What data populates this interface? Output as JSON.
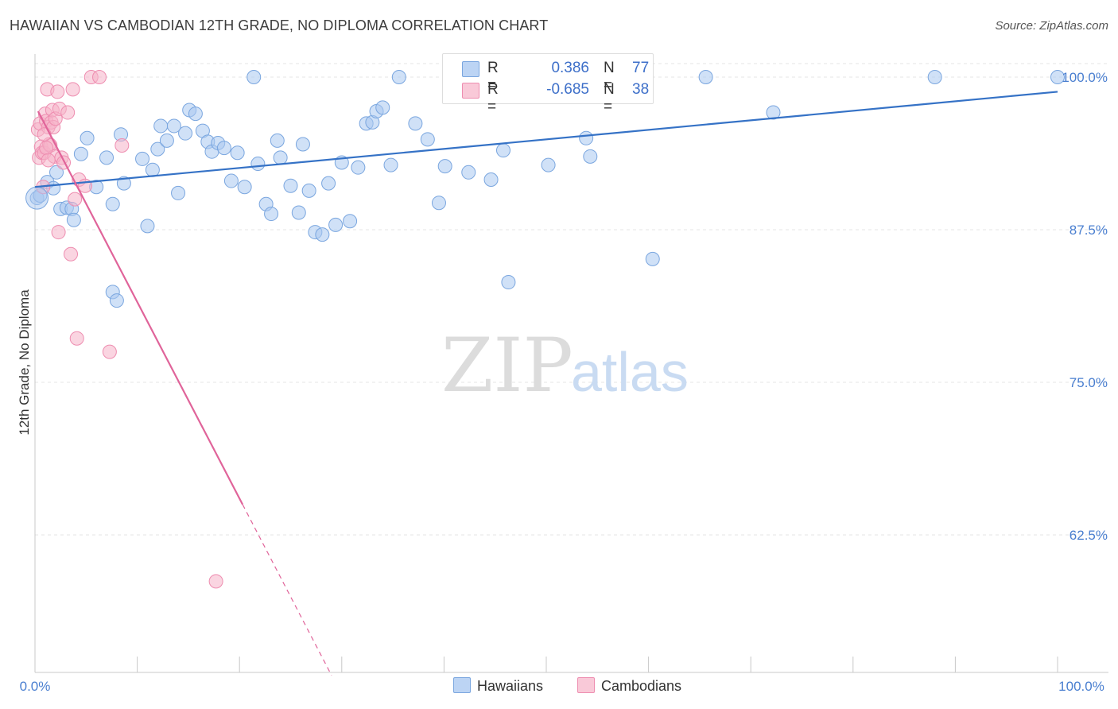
{
  "header": {
    "title": "HAWAIIAN VS CAMBODIAN 12TH GRADE, NO DIPLOMA CORRELATION CHART",
    "source": "Source: ZipAtlas.com"
  },
  "watermark": {
    "zip": "ZIP",
    "atlas": "atlas"
  },
  "legend": {
    "rows": [
      {
        "r_label": "R =",
        "r_value": "0.386",
        "n_label": "N =",
        "n_value": "77",
        "color": "#a9c8f0"
      },
      {
        "r_label": "R =",
        "r_value": "-0.685",
        "n_label": "N =",
        "n_value": "38",
        "color": "#f6b3c8"
      }
    ],
    "bottom": [
      {
        "label": "Hawaiians",
        "color": "#a9c8f0"
      },
      {
        "label": "Cambodians",
        "color": "#f6b3c8"
      }
    ]
  },
  "colors": {
    "blue_fill": "#a9c8f0",
    "blue_stroke": "#7aa6df",
    "blue_line": "#3572c6",
    "pink_fill": "#f6b3c8",
    "pink_stroke": "#ee8db0",
    "pink_line": "#e0649a",
    "axis_text": "#4a7fd0",
    "grid": "#e6e6e6"
  },
  "chart_data": {
    "type": "scatter",
    "title": "HAWAIIAN VS CAMBODIAN 12TH GRADE, NO DIPLOMA CORRELATION CHART",
    "xlabel": "",
    "ylabel": "12th Grade, No Diploma",
    "xlim": [
      0,
      100
    ],
    "ylim": [
      50,
      101.5
    ],
    "x_tick_labels": [
      "0.0%",
      "100.0%"
    ],
    "y_ticks": [
      62.5,
      75.0,
      87.5,
      100.0
    ],
    "y_tick_labels": [
      "62.5%",
      "75.0%",
      "87.5%",
      "100.0%"
    ],
    "grid": true,
    "legend_position": "top-center",
    "series": [
      {
        "name": "Hawaiians",
        "r": 0.386,
        "n": 77,
        "trend": {
          "x": [
            0,
            100
          ],
          "y": [
            91.0,
            98.8
          ]
        },
        "points": [
          [
            0.2,
            90.1
          ],
          [
            0.5,
            90.3
          ],
          [
            1.2,
            91.4
          ],
          [
            1.8,
            90.9
          ],
          [
            2.1,
            92.2
          ],
          [
            2.5,
            89.2
          ],
          [
            3.1,
            89.3
          ],
          [
            3.6,
            89.2
          ],
          [
            3.8,
            88.3
          ],
          [
            4.5,
            93.7
          ],
          [
            5.1,
            95.0
          ],
          [
            6.0,
            91.0
          ],
          [
            7.0,
            93.4
          ],
          [
            7.6,
            89.6
          ],
          [
            8.4,
            95.3
          ],
          [
            8.7,
            91.3
          ],
          [
            10.5,
            93.3
          ],
          [
            11.0,
            87.8
          ],
          [
            11.5,
            92.4
          ],
          [
            12.0,
            94.1
          ],
          [
            12.3,
            96.0
          ],
          [
            12.9,
            94.8
          ],
          [
            13.6,
            96.0
          ],
          [
            14.0,
            90.5
          ],
          [
            14.7,
            95.4
          ],
          [
            15.1,
            97.3
          ],
          [
            15.7,
            97.0
          ],
          [
            16.4,
            95.6
          ],
          [
            16.9,
            94.7
          ],
          [
            17.3,
            93.9
          ],
          [
            17.9,
            94.6
          ],
          [
            18.5,
            94.2
          ],
          [
            19.2,
            91.5
          ],
          [
            19.8,
            93.8
          ],
          [
            20.5,
            91.0
          ],
          [
            21.4,
            100.0
          ],
          [
            21.8,
            92.9
          ],
          [
            22.6,
            89.6
          ],
          [
            23.1,
            88.8
          ],
          [
            23.7,
            94.8
          ],
          [
            24.0,
            93.4
          ],
          [
            25.0,
            91.1
          ],
          [
            25.8,
            88.9
          ],
          [
            26.2,
            94.5
          ],
          [
            26.8,
            90.7
          ],
          [
            27.4,
            87.3
          ],
          [
            28.1,
            87.1
          ],
          [
            28.7,
            91.3
          ],
          [
            29.4,
            87.9
          ],
          [
            30.0,
            93.0
          ],
          [
            30.8,
            88.2
          ],
          [
            31.6,
            92.6
          ],
          [
            32.4,
            96.2
          ],
          [
            33.0,
            96.3
          ],
          [
            33.4,
            97.2
          ],
          [
            34.0,
            97.5
          ],
          [
            34.8,
            92.8
          ],
          [
            35.6,
            100.0
          ],
          [
            37.2,
            96.2
          ],
          [
            38.4,
            94.9
          ],
          [
            39.5,
            89.7
          ],
          [
            40.1,
            92.7
          ],
          [
            42.4,
            92.2
          ],
          [
            44.6,
            91.6
          ],
          [
            45.8,
            94.0
          ],
          [
            46.3,
            83.2
          ],
          [
            47.8,
            98.6
          ],
          [
            50.2,
            92.8
          ],
          [
            53.9,
            95.0
          ],
          [
            54.3,
            93.5
          ],
          [
            60.4,
            85.1
          ],
          [
            65.6,
            100.0
          ],
          [
            72.2,
            97.1
          ],
          [
            88.0,
            100.0
          ],
          [
            100.0,
            100.0
          ],
          [
            7.6,
            82.4
          ],
          [
            8.0,
            81.7
          ]
        ]
      },
      {
        "name": "Cambodians",
        "r": -0.685,
        "n": 38,
        "trend": {
          "x": [
            0.3,
            20.3
          ],
          "y": [
            97.2,
            65.0
          ]
        },
        "trend_dashed": {
          "x": [
            20.3,
            29.0
          ],
          "y": [
            65.0,
            51.0
          ]
        },
        "points": [
          [
            0.3,
            95.7
          ],
          [
            0.4,
            93.4
          ],
          [
            0.5,
            96.2
          ],
          [
            0.6,
            94.3
          ],
          [
            0.7,
            93.8
          ],
          [
            0.8,
            91.0
          ],
          [
            0.9,
            93.8
          ],
          [
            1.0,
            97.0
          ],
          [
            1.1,
            96.4
          ],
          [
            1.2,
            99.0
          ],
          [
            1.3,
            95.9
          ],
          [
            1.4,
            94.5
          ],
          [
            1.5,
            94.4
          ],
          [
            1.6,
            96.3
          ],
          [
            1.7,
            97.3
          ],
          [
            1.8,
            95.9
          ],
          [
            1.9,
            93.5
          ],
          [
            2.0,
            96.6
          ],
          [
            2.2,
            98.8
          ],
          [
            2.4,
            97.4
          ],
          [
            2.6,
            93.4
          ],
          [
            2.8,
            93.0
          ],
          [
            3.2,
            97.1
          ],
          [
            3.7,
            99.0
          ],
          [
            4.3,
            91.6
          ],
          [
            4.9,
            91.1
          ],
          [
            5.5,
            100.0
          ],
          [
            6.3,
            100.0
          ],
          [
            2.3,
            87.3
          ],
          [
            3.5,
            85.5
          ],
          [
            4.1,
            78.6
          ],
          [
            7.3,
            77.5
          ],
          [
            8.5,
            94.4
          ],
          [
            17.7,
            58.7
          ],
          [
            0.9,
            95.3
          ],
          [
            1.1,
            94.2
          ],
          [
            3.9,
            90.0
          ],
          [
            1.3,
            93.2
          ]
        ]
      }
    ]
  }
}
